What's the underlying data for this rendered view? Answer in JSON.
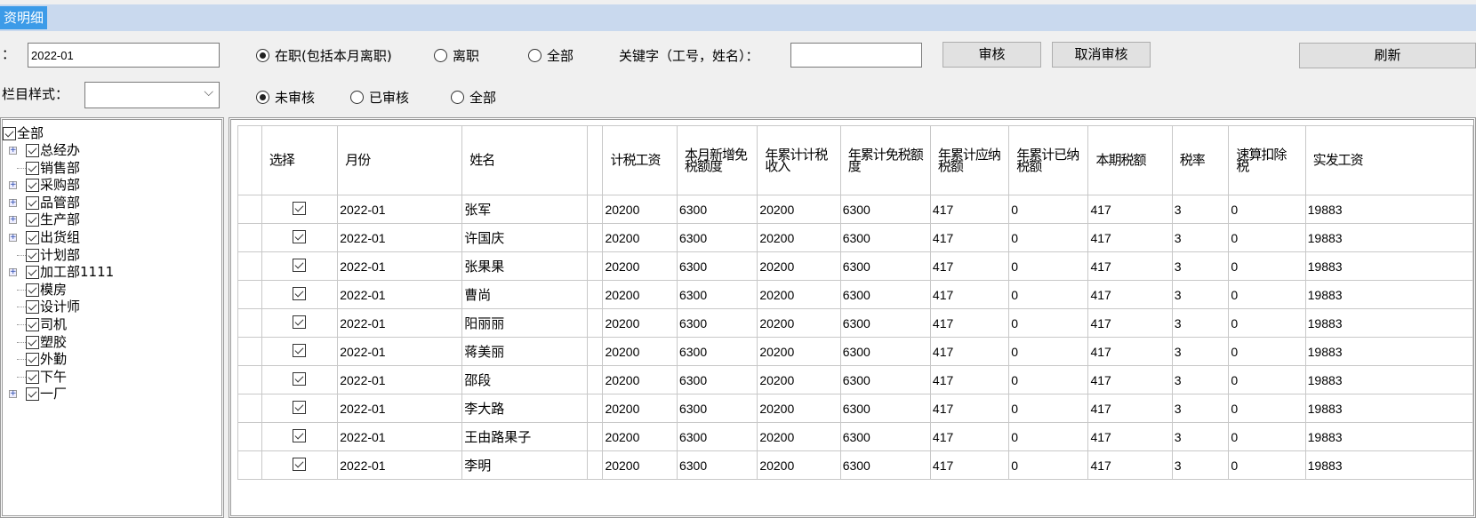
{
  "window": {
    "tab_title": "资明细"
  },
  "filters": {
    "month_label": "：",
    "month_value": "2022-01",
    "style_label": "栏目样式：",
    "style_value": "",
    "status_options": [
      {
        "label": "在职(包括本月离职)",
        "selected": true
      },
      {
        "label": "离职",
        "selected": false
      },
      {
        "label": "全部",
        "selected": false
      }
    ],
    "audit_options": [
      {
        "label": "未审核",
        "selected": true
      },
      {
        "label": "已审核",
        "selected": false
      },
      {
        "label": "全部",
        "selected": false
      }
    ],
    "keyword_label": "关键字（工号，姓名）：",
    "keyword_value": "",
    "audit_button": "审核",
    "cancel_audit_button": "取消审核",
    "refresh_button": "刷新"
  },
  "tree": {
    "root": "全部",
    "items": [
      {
        "label": "总经办",
        "expandable": true
      },
      {
        "label": "销售部",
        "expandable": false
      },
      {
        "label": "采购部",
        "expandable": true
      },
      {
        "label": "品管部",
        "expandable": true
      },
      {
        "label": "生产部",
        "expandable": true
      },
      {
        "label": "出货组",
        "expandable": true
      },
      {
        "label": "计划部",
        "expandable": false
      },
      {
        "label": "加工部1111",
        "expandable": true
      },
      {
        "label": "模房",
        "expandable": false
      },
      {
        "label": "设计师",
        "expandable": false
      },
      {
        "label": "司机",
        "expandable": false
      },
      {
        "label": "塑胶",
        "expandable": false
      },
      {
        "label": "外勤",
        "expandable": false
      },
      {
        "label": "下午",
        "expandable": false
      },
      {
        "label": "一厂",
        "expandable": true
      }
    ]
  },
  "table": {
    "headers": [
      "选择",
      "月份",
      "姓名",
      "",
      "计税工资",
      "本月新增免税额度",
      "年累计计税收入",
      "年累计免税额度",
      "年累计应纳税额",
      "年累计已纳税额",
      "本期税额",
      "税率",
      "速算扣除税",
      "实发工资"
    ],
    "rows": [
      [
        "2022-01",
        "张军",
        "20200",
        "6300",
        "20200",
        "6300",
        "417",
        "0",
        "417",
        "3",
        "0",
        "19883"
      ],
      [
        "2022-01",
        "许国庆",
        "20200",
        "6300",
        "20200",
        "6300",
        "417",
        "0",
        "417",
        "3",
        "0",
        "19883"
      ],
      [
        "2022-01",
        "张果果",
        "20200",
        "6300",
        "20200",
        "6300",
        "417",
        "0",
        "417",
        "3",
        "0",
        "19883"
      ],
      [
        "2022-01",
        "曹尚",
        "20200",
        "6300",
        "20200",
        "6300",
        "417",
        "0",
        "417",
        "3",
        "0",
        "19883"
      ],
      [
        "2022-01",
        "阳丽丽",
        "20200",
        "6300",
        "20200",
        "6300",
        "417",
        "0",
        "417",
        "3",
        "0",
        "19883"
      ],
      [
        "2022-01",
        "蒋美丽",
        "20200",
        "6300",
        "20200",
        "6300",
        "417",
        "0",
        "417",
        "3",
        "0",
        "19883"
      ],
      [
        "2022-01",
        "邵段",
        "20200",
        "6300",
        "20200",
        "6300",
        "417",
        "0",
        "417",
        "3",
        "0",
        "19883"
      ],
      [
        "2022-01",
        "李大路",
        "20200",
        "6300",
        "20200",
        "6300",
        "417",
        "0",
        "417",
        "3",
        "0",
        "19883"
      ],
      [
        "2022-01",
        "王由路果子",
        "20200",
        "6300",
        "20200",
        "6300",
        "417",
        "0",
        "417",
        "3",
        "0",
        "19883"
      ],
      [
        "2022-01",
        "李明",
        "20200",
        "6300",
        "20200",
        "6300",
        "417",
        "0",
        "417",
        "3",
        "0",
        "19883"
      ]
    ]
  }
}
